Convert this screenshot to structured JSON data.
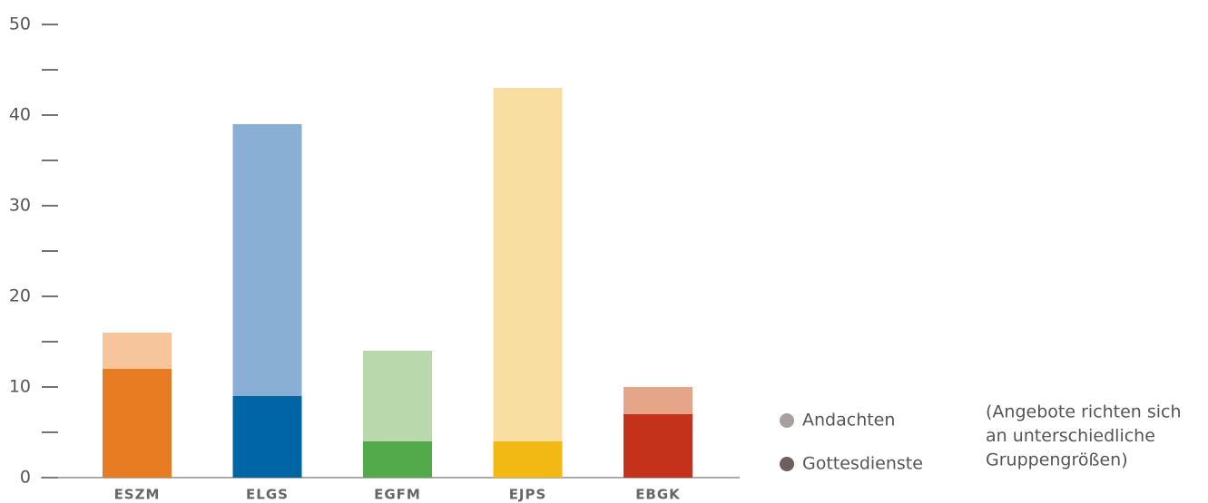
{
  "chart_data": {
    "type": "stacked_bar",
    "categories": [
      "ESZM",
      "ELGS",
      "EGFM",
      "EJPS",
      "EBGK"
    ],
    "series": [
      {
        "name": "Gottesdienste",
        "color": "#6b605d",
        "values": [
          12,
          9,
          4,
          4,
          7
        ],
        "bar_colors": [
          "#e87c22",
          "#0065a4",
          "#52aa4b",
          "#f2b914",
          "#c4321b"
        ]
      },
      {
        "name": "Andachten",
        "color": "#a8a09e",
        "values": [
          4,
          30,
          10,
          39,
          3
        ],
        "bar_colors": [
          "#f7c59b",
          "#8aafd4",
          "#b9d9ad",
          "#f8dfa1",
          "#e5a588"
        ]
      }
    ],
    "ylim": [
      0,
      50
    ],
    "yticks": [
      0,
      10,
      20,
      30,
      40,
      50
    ],
    "yticks_minor": [
      5,
      15,
      25,
      35,
      45
    ],
    "note": [
      "(Angebote richten sich",
      "an unterschiedliche",
      "Gruppengrößen)"
    ]
  }
}
